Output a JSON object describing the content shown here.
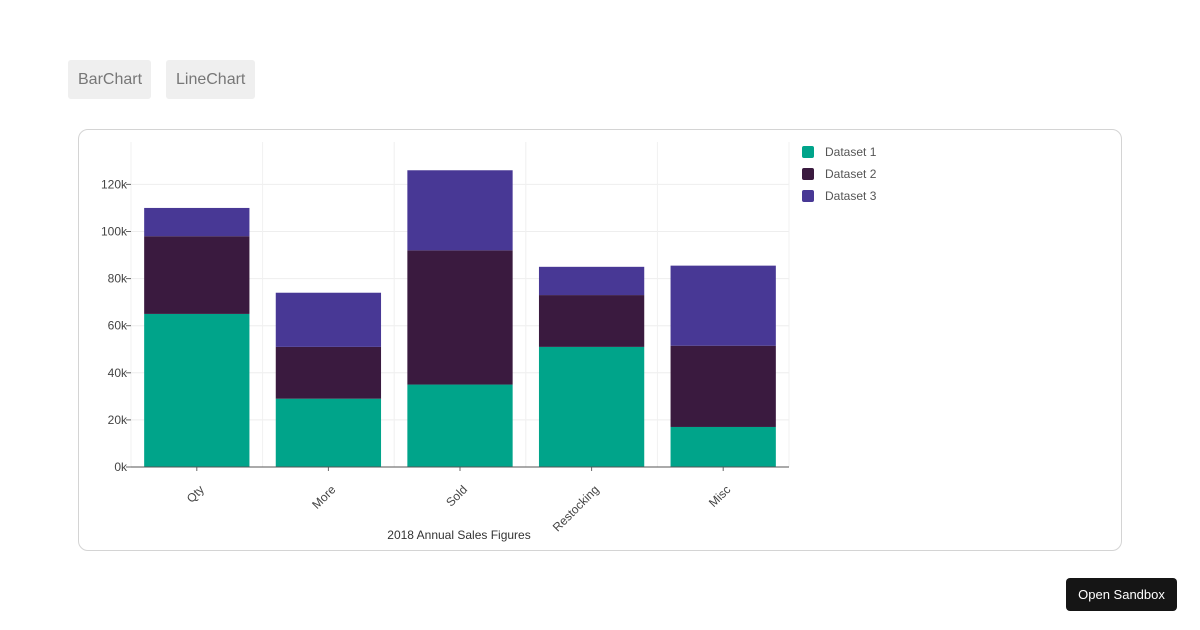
{
  "toolbar": {
    "bar_chart_label": "BarChart",
    "line_chart_label": "LineChart"
  },
  "sandbox": {
    "label": "Open Sandbox"
  },
  "chart_data": {
    "type": "bar",
    "stacked": true,
    "title": "",
    "xlabel": "2018 Annual Sales Figures",
    "ylabel": "",
    "categories": [
      "Qty",
      "More",
      "Sold",
      "Restocking",
      "Misc"
    ],
    "ylim": [
      0,
      138000
    ],
    "yticks": [
      0,
      20000,
      40000,
      60000,
      80000,
      100000,
      120000
    ],
    "ytick_labels": [
      "0k",
      "20k",
      "40k",
      "60k",
      "80k",
      "100k",
      "120k"
    ],
    "grid": true,
    "legend_position": "top-right",
    "series": [
      {
        "name": "Dataset 1",
        "color": "#00a48a",
        "values": [
          65000,
          29000,
          35000,
          51000,
          17000
        ]
      },
      {
        "name": "Dataset 2",
        "color": "#3a1a3f",
        "values": [
          33000,
          22000,
          57000,
          22000,
          34500
        ]
      },
      {
        "name": "Dataset 3",
        "color": "#483895",
        "values": [
          12000,
          23000,
          34000,
          12000,
          34000
        ]
      }
    ]
  }
}
